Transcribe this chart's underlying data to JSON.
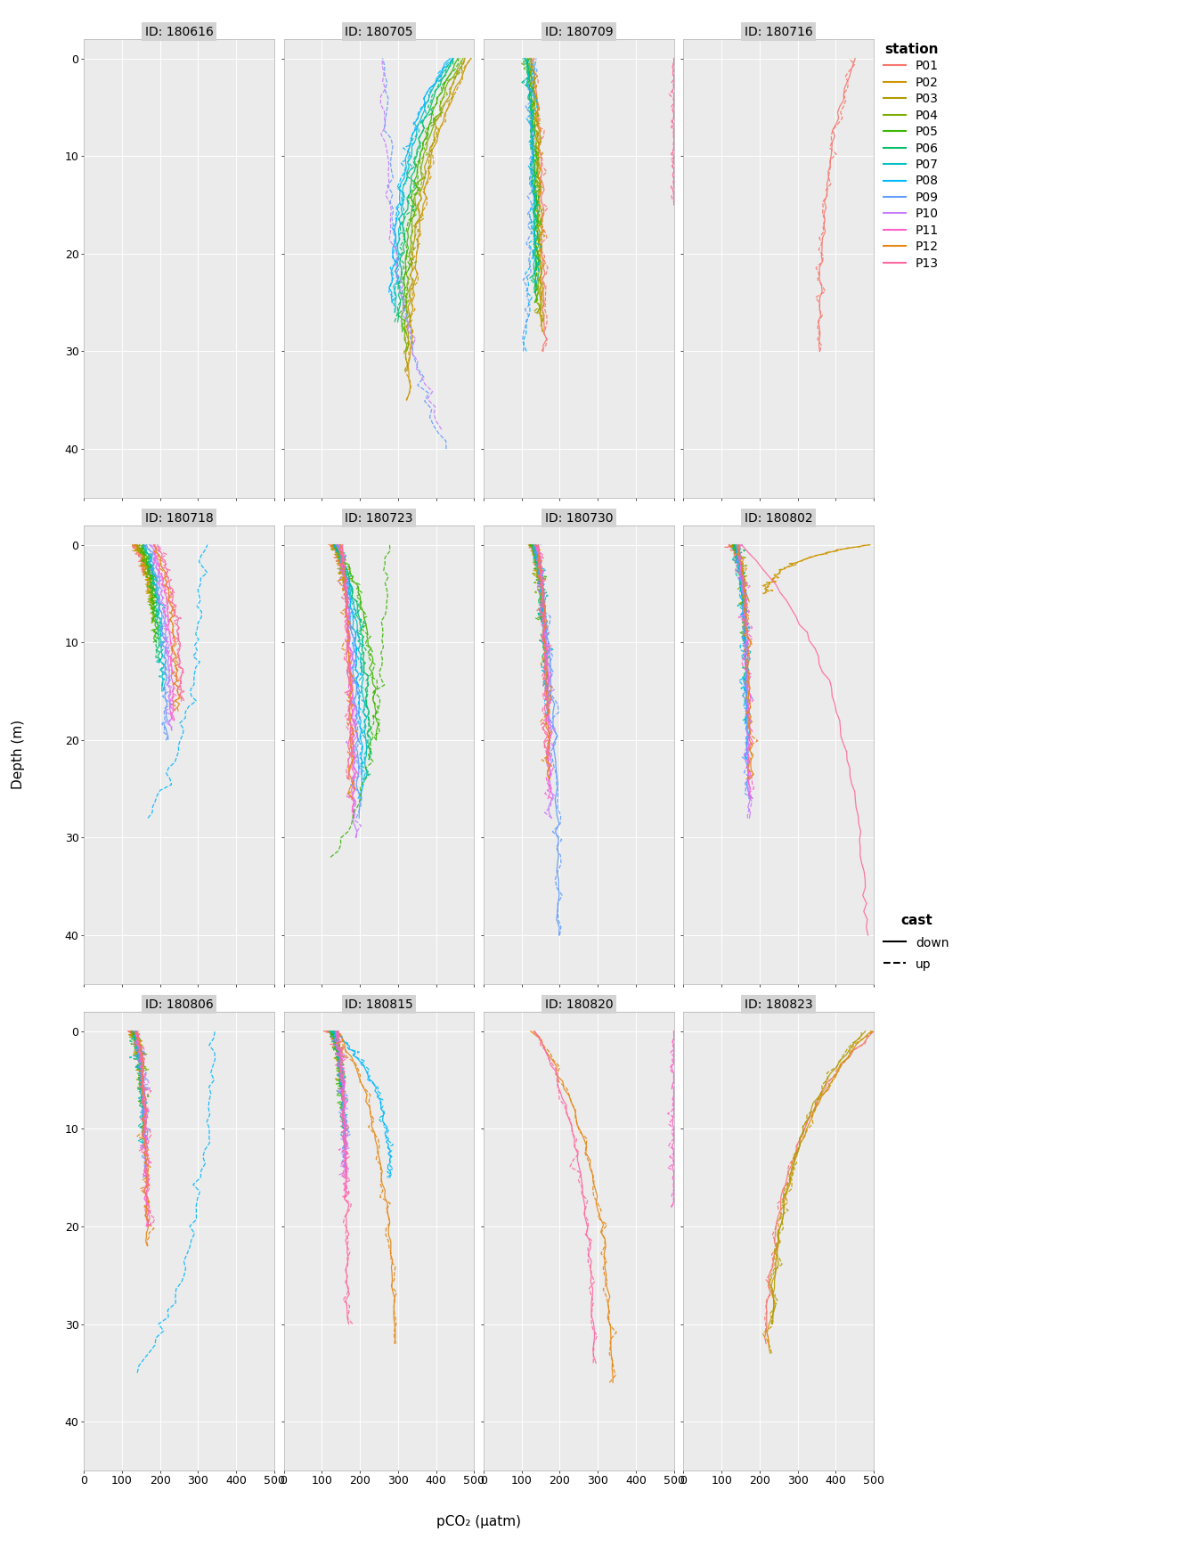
{
  "cruises": [
    "180616",
    "180705",
    "180709",
    "180716",
    "180718",
    "180723",
    "180730",
    "180802",
    "180806",
    "180815",
    "180820",
    "180823"
  ],
  "station_colors": {
    "P01": "#F8766D",
    "P02": "#CD9600",
    "P03": "#B09B00",
    "P04": "#7CAE00",
    "P05": "#39B600",
    "P06": "#00BE67",
    "P07": "#00BFC4",
    "P08": "#00B8FF",
    "P09": "#619CFF",
    "P10": "#C77CFF",
    "P11": "#FF61CC",
    "P12": "#E68613",
    "P13": "#FF68A1"
  },
  "xlim": [
    0,
    500
  ],
  "ylim": [
    45,
    -2
  ],
  "xticks": [
    0,
    100,
    200,
    300,
    400,
    500
  ],
  "yticks": [
    0,
    10,
    20,
    30,
    40
  ],
  "xlabel": "pCO₂ (µatm)",
  "ylabel": "Depth (m)",
  "background_color": "#EBEBEB",
  "panel_title_bg": "#D3D3D3",
  "grid_color": "white",
  "title_fontsize": 10,
  "label_fontsize": 11,
  "tick_fontsize": 9
}
